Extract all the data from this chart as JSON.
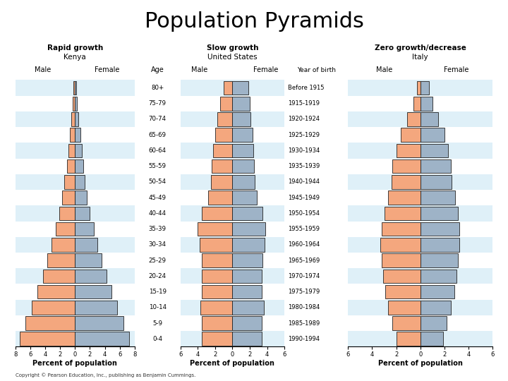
{
  "title": "Population Pyramids",
  "title_fontsize": 22,
  "title_font": "sans-serif",
  "kenya": {
    "label1": "Rapid growth",
    "label2": "Kenya",
    "age_groups": [
      "80+",
      "75-79",
      "70-74",
      "65-69",
      "60-64",
      "55-59",
      "50-54",
      "45-49",
      "40-44",
      "35-39",
      "30-34",
      "25-29",
      "20-24",
      "15-19",
      "10-14",
      "5-9",
      "0-4"
    ],
    "male": [
      0.2,
      0.3,
      0.5,
      0.7,
      0.9,
      1.1,
      1.4,
      1.7,
      2.1,
      2.6,
      3.1,
      3.7,
      4.3,
      5.0,
      5.8,
      6.6,
      7.4
    ],
    "female": [
      0.2,
      0.3,
      0.5,
      0.7,
      0.9,
      1.1,
      1.3,
      1.6,
      2.0,
      2.5,
      3.0,
      3.6,
      4.2,
      4.9,
      5.7,
      6.5,
      7.3
    ],
    "xlim": 8,
    "xlabel": "Percent of population"
  },
  "us": {
    "label1": "Slow growth",
    "label2": "United States",
    "age_groups": [
      "80+",
      "75-79",
      "70-74",
      "65-69",
      "60-64",
      "55-59",
      "50-54",
      "45-49",
      "40-44",
      "35-39",
      "30-34",
      "25-29",
      "20-24",
      "15-19",
      "10-14",
      "5-9",
      "0-4"
    ],
    "male": [
      1.0,
      1.4,
      1.7,
      2.0,
      2.2,
      2.4,
      2.5,
      2.8,
      3.5,
      4.0,
      3.8,
      3.5,
      3.5,
      3.5,
      3.7,
      3.5,
      3.5
    ],
    "female": [
      1.8,
      2.0,
      2.1,
      2.3,
      2.4,
      2.5,
      2.6,
      2.8,
      3.5,
      3.8,
      3.7,
      3.5,
      3.4,
      3.4,
      3.6,
      3.4,
      3.4
    ],
    "xlim": 6,
    "xlabel": "Percent of population"
  },
  "italy": {
    "label1": "Zero growth/decrease",
    "label2": "Italy",
    "age_groups": [
      "Before 1915",
      "1915-1919",
      "1920-1924",
      "1925-1929",
      "1930-1934",
      "1935-1939",
      "1940-1944",
      "1945-1949",
      "1950-1954",
      "1955-1959",
      "1960-1964",
      "1965-1969",
      "1970-1974",
      "1975-1979",
      "1980-1984",
      "1985-1989",
      "1990-1994"
    ],
    "male": [
      0.3,
      0.6,
      1.1,
      1.6,
      2.0,
      2.3,
      2.4,
      2.7,
      3.0,
      3.2,
      3.3,
      3.2,
      3.1,
      2.9,
      2.7,
      2.3,
      2.0
    ],
    "female": [
      0.7,
      1.0,
      1.5,
      2.0,
      2.3,
      2.5,
      2.6,
      2.9,
      3.1,
      3.2,
      3.2,
      3.1,
      3.0,
      2.8,
      2.5,
      2.2,
      1.9
    ],
    "xlim": 6,
    "xlabel": "Percent of population"
  },
  "male_color": "#F4A77E",
  "female_color": "#9EB3C7",
  "bar_edge_color": "#222222",
  "bar_height": 0.88,
  "bg_colors": [
    "#DFF0F8",
    "#FFFFFF"
  ],
  "copyright": "Copyright © Pearson Education, Inc., publishing as Benjamin Cummings."
}
